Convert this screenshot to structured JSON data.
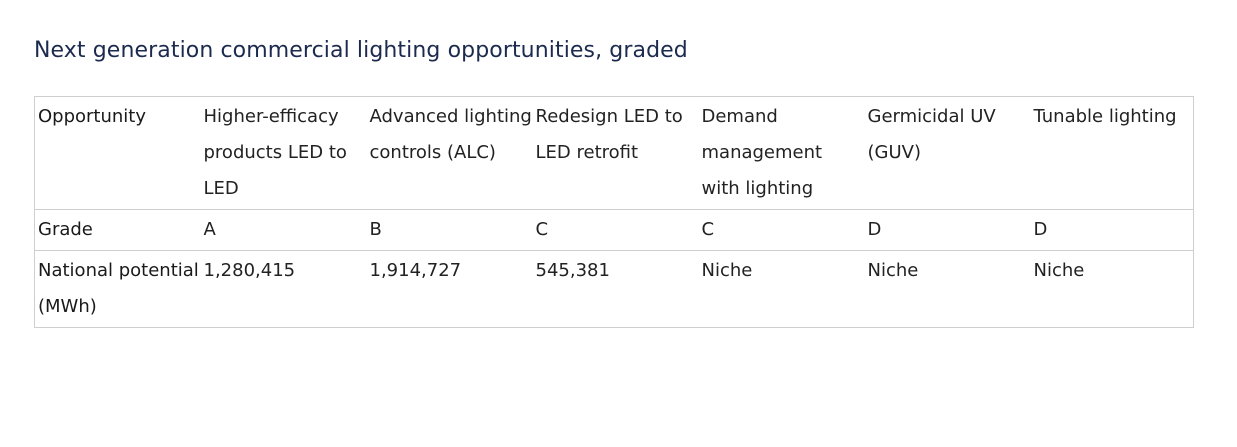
{
  "title": "Next generation commercial lighting opportunities, graded",
  "table": {
    "rows": [
      {
        "label": "Opportunity",
        "cells": [
          "Higher-efficacy products LED to LED",
          "Advanced lighting controls (ALC)",
          "Redesign LED to LED retrofit",
          "Demand management with lighting",
          "Germicidal UV (GUV)",
          "Tunable lighting"
        ]
      },
      {
        "label": "Grade",
        "cells": [
          "A",
          "B",
          "C",
          "C",
          "D",
          "D"
        ]
      },
      {
        "label": "National potential (MWh)",
        "cells": [
          "1,280,415",
          "1,914,727",
          "545,381",
          "Niche",
          "Niche",
          "Niche"
        ]
      }
    ]
  }
}
